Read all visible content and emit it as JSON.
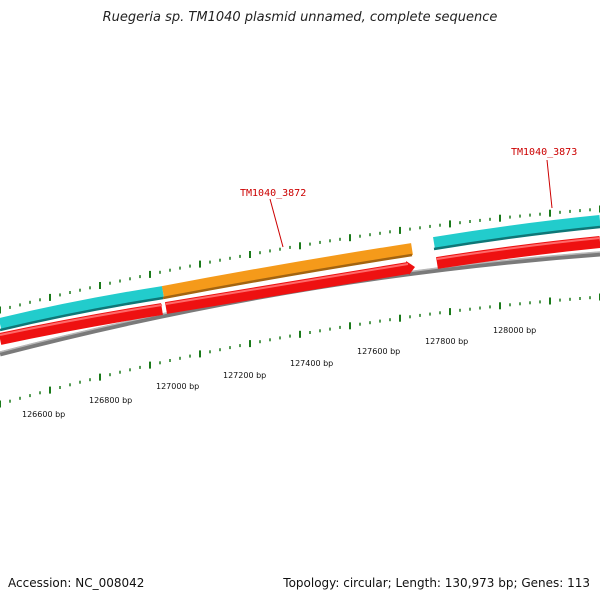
{
  "title": "Ruegeria sp. TM1040 plasmid unnamed, complete sequence",
  "footer": {
    "accession": "Accession: NC_008042",
    "topology": "Topology: circular; Length: 130,973 bp; Genes: 113"
  },
  "colors": {
    "background": "#ffffff",
    "backbone": "#808080",
    "cyan_track": "#22cccc",
    "orange_gene": "#f59a1a",
    "red_gene": "#ee1111",
    "tick": "#1a7a1a",
    "label": "#cc0000"
  },
  "gene_labels": [
    {
      "id": "TM1040_3872"
    },
    {
      "id": "TM1040_3873"
    }
  ],
  "position_labels": [
    "126600 bp",
    "126800 bp",
    "127000 bp",
    "127200 bp",
    "127400 bp",
    "127600 bp",
    "127800 bp",
    "128000 bp"
  ]
}
